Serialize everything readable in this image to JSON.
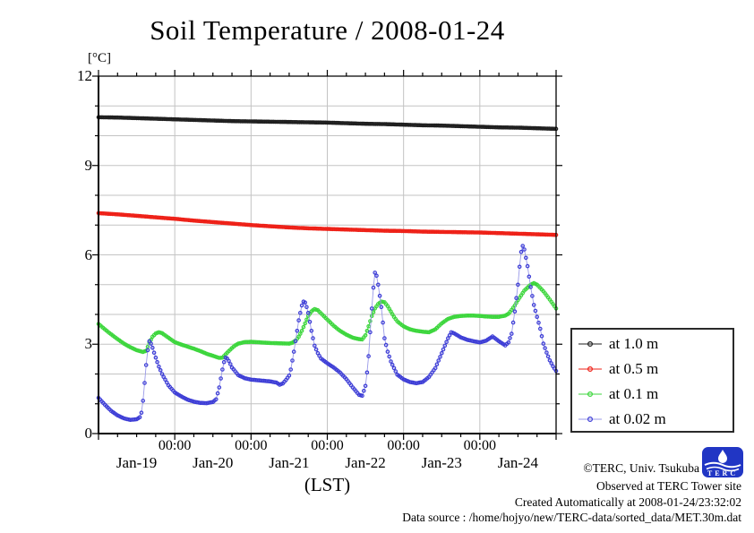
{
  "header": {
    "title": "Soil Temperature / 2008-01-24"
  },
  "chart_data": {
    "type": "line",
    "title": "Soil Temperature / 2008-01-24",
    "y_unit_label": "[°C]",
    "x_axis_label": "(LST)",
    "ylim": [
      0,
      12
    ],
    "xlim_hours": [
      0,
      144
    ],
    "x_start_label": "Jan-19 00:00",
    "y_major_ticks": [
      0,
      3,
      6,
      9,
      12
    ],
    "y_minor_step": 1,
    "x_major_step_hours": 24,
    "x_minor_step_hours": 6,
    "x_time_tick_label": "00:00",
    "x_time_tick_hours": [
      24,
      48,
      72,
      96,
      120
    ],
    "day_labels": [
      "Jan-19",
      "Jan-20",
      "Jan-21",
      "Jan-22",
      "Jan-23",
      "Jan-24"
    ],
    "grid": {
      "horizontal_every_degC": 1,
      "vertical_every_hours": 24,
      "color": "#c3c3c3"
    },
    "legend": {
      "position": "outside-right-bottom"
    },
    "point_style": "open-circles-every-30min",
    "series": [
      {
        "name": "at 1.0 m",
        "color": "#1f1f1f",
        "points": [
          [
            0,
            10.62
          ],
          [
            6,
            10.61
          ],
          [
            12,
            10.59
          ],
          [
            18,
            10.57
          ],
          [
            24,
            10.55
          ],
          [
            30,
            10.53
          ],
          [
            36,
            10.51
          ],
          [
            42,
            10.49
          ],
          [
            48,
            10.48
          ],
          [
            54,
            10.47
          ],
          [
            60,
            10.46
          ],
          [
            66,
            10.45
          ],
          [
            72,
            10.44
          ],
          [
            78,
            10.42
          ],
          [
            84,
            10.4
          ],
          [
            90,
            10.39
          ],
          [
            96,
            10.37
          ],
          [
            102,
            10.35
          ],
          [
            108,
            10.34
          ],
          [
            114,
            10.32
          ],
          [
            120,
            10.3
          ],
          [
            126,
            10.28
          ],
          [
            132,
            10.27
          ],
          [
            138,
            10.25
          ],
          [
            144,
            10.23
          ]
        ]
      },
      {
        "name": "at 0.5 m",
        "color": "#ee2017",
        "points": [
          [
            0,
            7.4
          ],
          [
            6,
            7.36
          ],
          [
            12,
            7.31
          ],
          [
            18,
            7.26
          ],
          [
            24,
            7.21
          ],
          [
            30,
            7.15
          ],
          [
            36,
            7.1
          ],
          [
            42,
            7.05
          ],
          [
            48,
            7.0
          ],
          [
            54,
            6.96
          ],
          [
            60,
            6.92
          ],
          [
            66,
            6.89
          ],
          [
            72,
            6.87
          ],
          [
            78,
            6.85
          ],
          [
            84,
            6.83
          ],
          [
            90,
            6.81
          ],
          [
            96,
            6.8
          ],
          [
            102,
            6.78
          ],
          [
            108,
            6.77
          ],
          [
            114,
            6.76
          ],
          [
            120,
            6.75
          ],
          [
            126,
            6.73
          ],
          [
            132,
            6.71
          ],
          [
            138,
            6.69
          ],
          [
            144,
            6.67
          ]
        ]
      },
      {
        "name": "at 0.1 m",
        "color": "#3cd63c",
        "points": [
          [
            0,
            3.68
          ],
          [
            2,
            3.5
          ],
          [
            4,
            3.33
          ],
          [
            6,
            3.17
          ],
          [
            8,
            3.02
          ],
          [
            10,
            2.9
          ],
          [
            12,
            2.8
          ],
          [
            14,
            2.74
          ],
          [
            15,
            2.78
          ],
          [
            16,
            3.05
          ],
          [
            17,
            3.25
          ],
          [
            18,
            3.36
          ],
          [
            19,
            3.4
          ],
          [
            20,
            3.37
          ],
          [
            22,
            3.22
          ],
          [
            24,
            3.07
          ],
          [
            26,
            2.99
          ],
          [
            28,
            2.92
          ],
          [
            30,
            2.85
          ],
          [
            32,
            2.77
          ],
          [
            34,
            2.68
          ],
          [
            36,
            2.61
          ],
          [
            38,
            2.54
          ],
          [
            39,
            2.55
          ],
          [
            40,
            2.66
          ],
          [
            41,
            2.77
          ],
          [
            42,
            2.87
          ],
          [
            43,
            2.96
          ],
          [
            44,
            3.02
          ],
          [
            46,
            3.07
          ],
          [
            48,
            3.08
          ],
          [
            51,
            3.06
          ],
          [
            54,
            3.04
          ],
          [
            57,
            3.03
          ],
          [
            60,
            3.02
          ],
          [
            61,
            3.05
          ],
          [
            62,
            3.12
          ],
          [
            63,
            3.25
          ],
          [
            64,
            3.45
          ],
          [
            65,
            3.7
          ],
          [
            66,
            3.95
          ],
          [
            67,
            4.1
          ],
          [
            68,
            4.18
          ],
          [
            69,
            4.14
          ],
          [
            70,
            4.04
          ],
          [
            71,
            3.93
          ],
          [
            72,
            3.83
          ],
          [
            74,
            3.62
          ],
          [
            76,
            3.45
          ],
          [
            78,
            3.32
          ],
          [
            80,
            3.22
          ],
          [
            82,
            3.17
          ],
          [
            83,
            3.16
          ],
          [
            84,
            3.3
          ],
          [
            85,
            3.6
          ],
          [
            86,
            3.95
          ],
          [
            87,
            4.2
          ],
          [
            88,
            4.35
          ],
          [
            89,
            4.43
          ],
          [
            90,
            4.41
          ],
          [
            91,
            4.28
          ],
          [
            92,
            4.1
          ],
          [
            93,
            3.92
          ],
          [
            94,
            3.77
          ],
          [
            96,
            3.6
          ],
          [
            98,
            3.5
          ],
          [
            100,
            3.45
          ],
          [
            102,
            3.42
          ],
          [
            104,
            3.4
          ],
          [
            106,
            3.5
          ],
          [
            108,
            3.7
          ],
          [
            110,
            3.85
          ],
          [
            112,
            3.92
          ],
          [
            114,
            3.95
          ],
          [
            116,
            3.96
          ],
          [
            118,
            3.96
          ],
          [
            120,
            3.95
          ],
          [
            122,
            3.93
          ],
          [
            124,
            3.92
          ],
          [
            126,
            3.92
          ],
          [
            128,
            3.96
          ],
          [
            129,
            4.02
          ],
          [
            130,
            4.15
          ],
          [
            131,
            4.3
          ],
          [
            132,
            4.48
          ],
          [
            134,
            4.8
          ],
          [
            136,
            5.0
          ],
          [
            137,
            5.05
          ],
          [
            138,
            5.0
          ],
          [
            140,
            4.78
          ],
          [
            142,
            4.5
          ],
          [
            144,
            4.2
          ]
        ]
      },
      {
        "name": "at 0.02 m",
        "color": "#3d3dd6",
        "line_color": "#9a9ae8",
        "points": [
          [
            0,
            1.2
          ],
          [
            2,
            0.97
          ],
          [
            4,
            0.76
          ],
          [
            6,
            0.61
          ],
          [
            8,
            0.51
          ],
          [
            10,
            0.46
          ],
          [
            12,
            0.48
          ],
          [
            13,
            0.55
          ],
          [
            13.5,
            0.7
          ],
          [
            14,
            1.1
          ],
          [
            14.5,
            1.7
          ],
          [
            15,
            2.3
          ],
          [
            15.5,
            2.8
          ],
          [
            16,
            3.1
          ],
          [
            16.5,
            3.02
          ],
          [
            17,
            2.88
          ],
          [
            18,
            2.55
          ],
          [
            19,
            2.25
          ],
          [
            20,
            2.0
          ],
          [
            22,
            1.62
          ],
          [
            24,
            1.38
          ],
          [
            26,
            1.25
          ],
          [
            28,
            1.14
          ],
          [
            30,
            1.07
          ],
          [
            32,
            1.03
          ],
          [
            34,
            1.02
          ],
          [
            36,
            1.06
          ],
          [
            37,
            1.15
          ],
          [
            38,
            1.55
          ],
          [
            38.5,
            1.85
          ],
          [
            39,
            2.15
          ],
          [
            39.5,
            2.4
          ],
          [
            40,
            2.55
          ],
          [
            40.5,
            2.52
          ],
          [
            41,
            2.44
          ],
          [
            42,
            2.22
          ],
          [
            44,
            1.96
          ],
          [
            46,
            1.86
          ],
          [
            48,
            1.81
          ],
          [
            50,
            1.79
          ],
          [
            52,
            1.77
          ],
          [
            54,
            1.75
          ],
          [
            56,
            1.71
          ],
          [
            57,
            1.64
          ],
          [
            58,
            1.68
          ],
          [
            59,
            1.8
          ],
          [
            60,
            1.95
          ],
          [
            60.5,
            2.15
          ],
          [
            61,
            2.45
          ],
          [
            61.5,
            2.75
          ],
          [
            62,
            3.1
          ],
          [
            63,
            3.8
          ],
          [
            64,
            4.3
          ],
          [
            64.5,
            4.43
          ],
          [
            65,
            4.4
          ],
          [
            65.5,
            4.25
          ],
          [
            66,
            4.05
          ],
          [
            67,
            3.45
          ],
          [
            68,
            2.95
          ],
          [
            69,
            2.7
          ],
          [
            70,
            2.52
          ],
          [
            72,
            2.36
          ],
          [
            74,
            2.22
          ],
          [
            76,
            2.05
          ],
          [
            78,
            1.83
          ],
          [
            80,
            1.55
          ],
          [
            82,
            1.3
          ],
          [
            83,
            1.27
          ],
          [
            84,
            1.6
          ],
          [
            84.5,
            2.05
          ],
          [
            85,
            2.6
          ],
          [
            85.5,
            3.4
          ],
          [
            86,
            4.2
          ],
          [
            86.5,
            4.9
          ],
          [
            87,
            5.4
          ],
          [
            87.5,
            5.3
          ],
          [
            88,
            5.0
          ],
          [
            89,
            4.25
          ],
          [
            90,
            3.2
          ],
          [
            91,
            2.75
          ],
          [
            92,
            2.42
          ],
          [
            94,
            1.98
          ],
          [
            96,
            1.82
          ],
          [
            98,
            1.73
          ],
          [
            100,
            1.69
          ],
          [
            102,
            1.73
          ],
          [
            104,
            1.9
          ],
          [
            106,
            2.2
          ],
          [
            108,
            2.7
          ],
          [
            110,
            3.2
          ],
          [
            111,
            3.4
          ],
          [
            112,
            3.36
          ],
          [
            114,
            3.23
          ],
          [
            116,
            3.15
          ],
          [
            118,
            3.1
          ],
          [
            120,
            3.06
          ],
          [
            122,
            3.12
          ],
          [
            124,
            3.26
          ],
          [
            126,
            3.1
          ],
          [
            128,
            2.96
          ],
          [
            129,
            3.06
          ],
          [
            130,
            3.35
          ],
          [
            131,
            4.1
          ],
          [
            132,
            5.0
          ],
          [
            132.5,
            5.6
          ],
          [
            133,
            6.1
          ],
          [
            133.5,
            6.3
          ],
          [
            134,
            6.18
          ],
          [
            135,
            5.62
          ],
          [
            136,
            4.92
          ],
          [
            137,
            4.32
          ],
          [
            138,
            3.92
          ],
          [
            139,
            3.52
          ],
          [
            140,
            3.02
          ],
          [
            141,
            2.72
          ],
          [
            142,
            2.46
          ],
          [
            143,
            2.26
          ],
          [
            144,
            2.1
          ]
        ]
      }
    ]
  },
  "footer": {
    "copyright": "©TERC, Univ. Tsukuba",
    "observed": "Observed at TERC Tower site",
    "created": "Created Automatically at 2008-01-24/23:32:02",
    "datasource": "Data source : /home/hojyo/new/TERC-data/sorted_data/MET.30m.dat",
    "logo_text": "TERC",
    "logo_color": "#2136c4"
  }
}
